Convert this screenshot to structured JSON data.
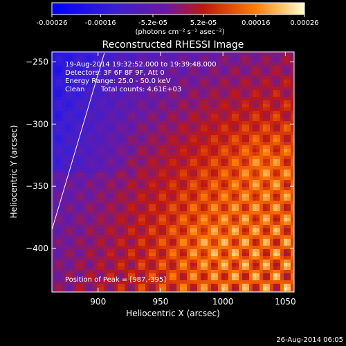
{
  "chart_data": {
    "type": "heatmap",
    "title": "Reconstructed RHESSI Image",
    "xlabel": "Heliocentric X (arcsec)",
    "ylabel": "Heliocentric Y (arcsec)",
    "xlim": [
      863,
      1057
    ],
    "ylim": [
      -435,
      -242
    ],
    "x_ticks": [
      900,
      950,
      1000,
      1050
    ],
    "y_ticks": [
      -250,
      -300,
      -350,
      -400
    ],
    "colorbar": {
      "range": [
        -0.00026,
        0.00026
      ],
      "tick_values": [
        -0.00026,
        -0.00016,
        -5.2e-05,
        5.2e-05,
        0.00016,
        0.00026
      ],
      "tick_labels": [
        "-0.00026",
        "-0.00016",
        "-5.2e-05",
        "5.2e-05",
        "0.00016",
        "0.00026"
      ],
      "units_label": "(photons cm⁻² s⁻¹ asec⁻²)"
    },
    "annotations": {
      "time_range": "19-Aug-2014 19:32:52.000 to 19:39:48.000",
      "detectors": "Detectors: 3F 6F 8F 9F, Att 0",
      "energy_range": "Energy Range: 25.0 - 50.0 keV",
      "algorithm": "Clean",
      "total_counts": "Total counts: 4.61E+03",
      "peak": "Position of Peak = [987,-395]"
    },
    "limb_line": [
      [
        863,
        -385
      ],
      [
        905,
        -243
      ]
    ],
    "footer_timestamp": "26-Aug-2014 06:05",
    "grid": false
  }
}
